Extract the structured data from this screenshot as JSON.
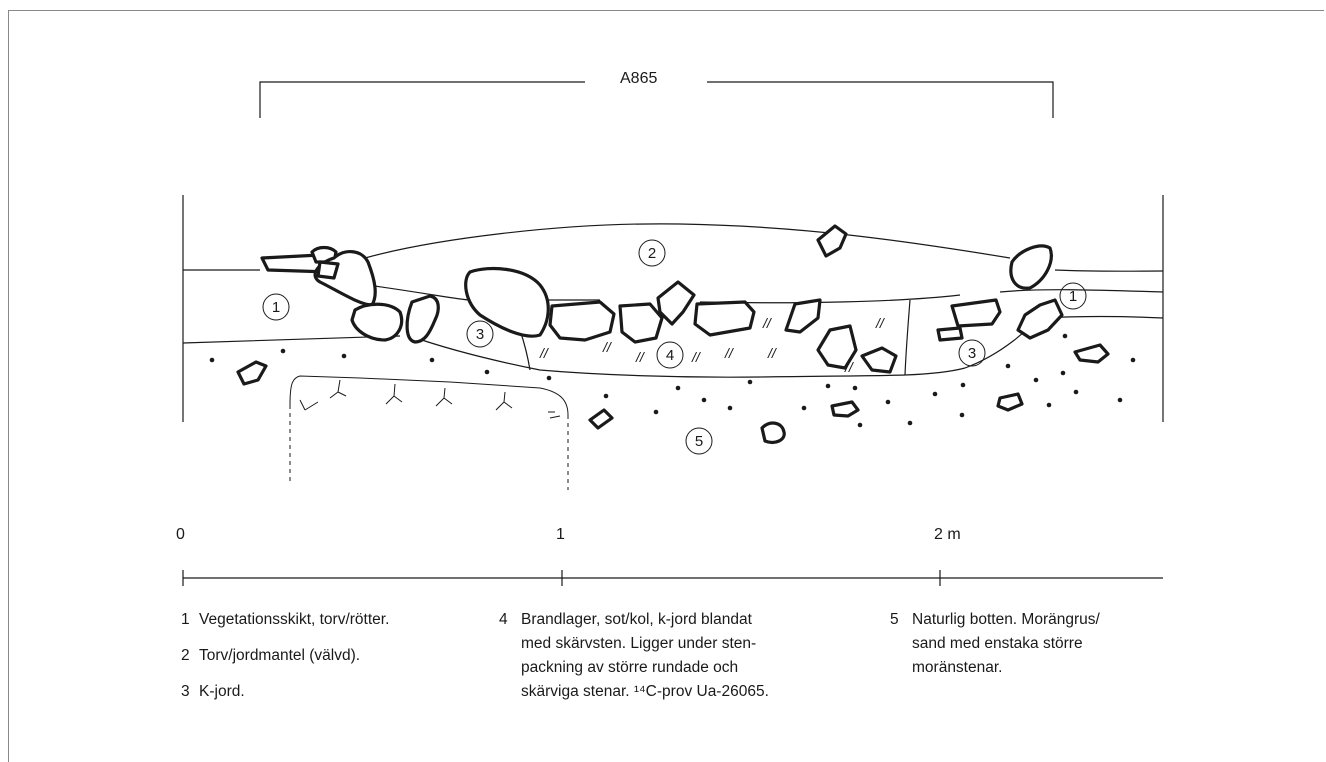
{
  "figure": {
    "label": "A865",
    "circled_labels": [
      "1",
      "2",
      "3",
      "4",
      "5"
    ]
  },
  "scale": {
    "ticks": [
      "0",
      "1",
      "2 m"
    ]
  },
  "legend": [
    {
      "num": "1",
      "text": "Vegetationsskikt, torv/rötter."
    },
    {
      "num": "2",
      "text": "Torv/jordmantel (välvd)."
    },
    {
      "num": "3",
      "text": "K-jord."
    },
    {
      "num": "4",
      "text": "Brandlager, sot/kol, k-jord blandat\nmed skärvsten. Ligger under sten-\npackning av större rundade och\nskärviga stenar. ¹⁴C-prov Ua-26065."
    },
    {
      "num": "5",
      "text": "Naturlig botten. Morängrus/\nsand med enstaka större\nmoränstenar."
    }
  ]
}
